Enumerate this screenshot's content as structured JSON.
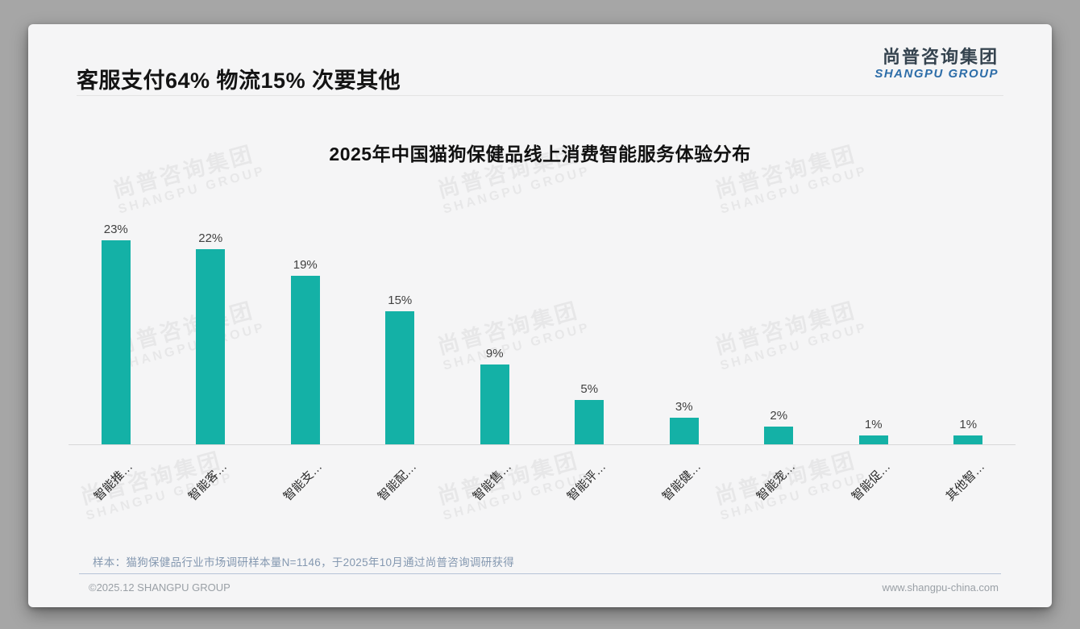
{
  "header": {
    "title": "客服支付64% 物流15% 次要其他"
  },
  "logo": {
    "cn": "尚普咨询集团",
    "en": "SHANGPU GROUP"
  },
  "watermark": {
    "line1": "尚普咨询集团",
    "line2": "SHANGPU GROUP"
  },
  "chart_data": {
    "type": "bar",
    "title": "2025年中国猫狗保健品线上消费智能服务体验分布",
    "categories": [
      "智能推…",
      "智能客…",
      "智能支…",
      "智能配…",
      "智能售…",
      "智能评…",
      "智能健…",
      "智能宠…",
      "智能促…",
      "其他智…"
    ],
    "values": [
      23,
      22,
      19,
      15,
      9,
      5,
      3,
      2,
      1,
      1
    ],
    "value_labels": [
      "23%",
      "22%",
      "19%",
      "15%",
      "9%",
      "5%",
      "3%",
      "2%",
      "1%",
      "1%"
    ],
    "unit": "%",
    "xlabel": "",
    "ylabel": "",
    "ylim": [
      0,
      25
    ],
    "grid": false,
    "legend": false,
    "label_rotation_deg": -45
  },
  "footnote": {
    "sample": "样本：猫狗保健品行业市场调研样本量N=1146，于2025年10月通过尚普咨询调研获得"
  },
  "footer": {
    "left": "©2025.12 SHANGPU GROUP",
    "right": "www.shangpu-china.com"
  },
  "colors": {
    "bar": "#14b1a6",
    "logo_cn": "#35434f",
    "logo_en": "#2d6da8",
    "axis": "#d8d8d8"
  }
}
